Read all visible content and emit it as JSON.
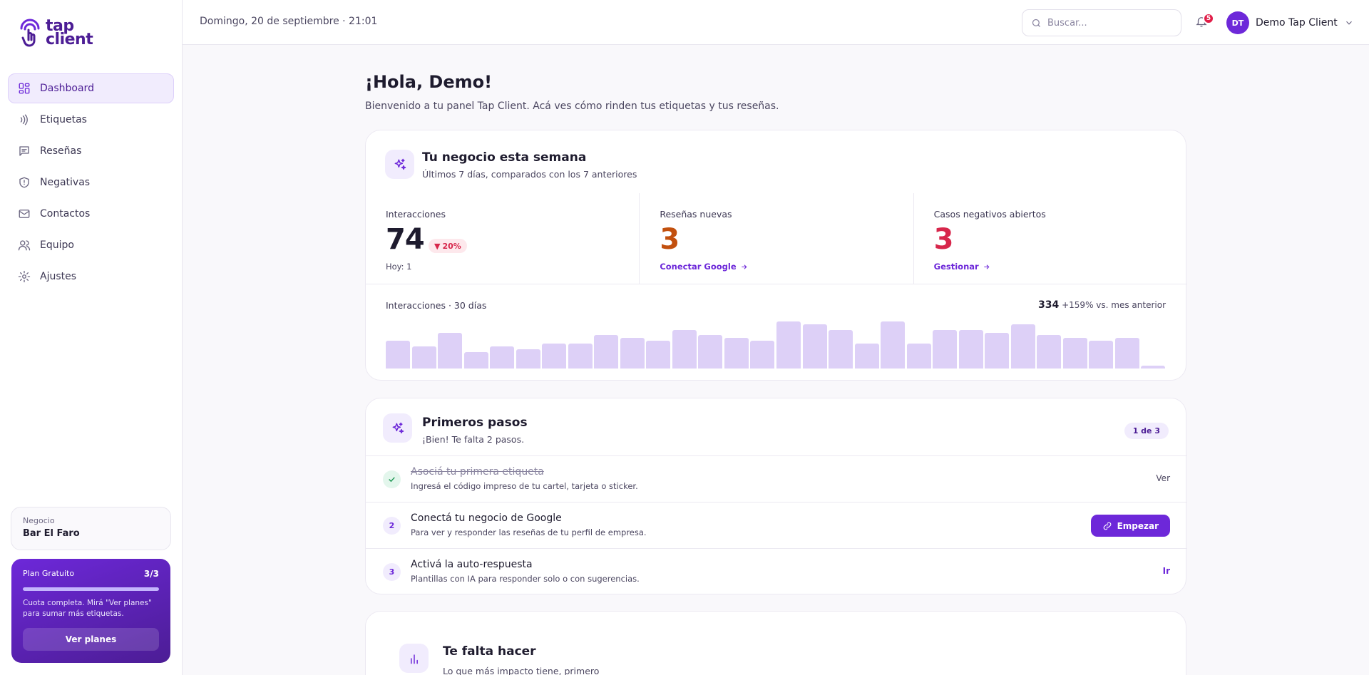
{
  "brand": {
    "line1": "tap",
    "line2": "client"
  },
  "sidebar": {
    "items": [
      {
        "label": "Dashboard",
        "icon": "dashboard-icon",
        "active": true
      },
      {
        "label": "Etiquetas",
        "icon": "nfc-icon"
      },
      {
        "label": "Reseñas",
        "icon": "reviews-icon"
      },
      {
        "label": "Negativas",
        "icon": "shield-icon"
      },
      {
        "label": "Contactos",
        "icon": "mail-icon"
      },
      {
        "label": "Equipo",
        "icon": "team-icon"
      },
      {
        "label": "Ajustes",
        "icon": "gear-icon"
      }
    ],
    "business": {
      "label": "Negocio",
      "name": "Bar El Faro"
    },
    "plan": {
      "name": "Plan Gratuito",
      "count": "3/3",
      "usage_fraction": 1.0,
      "text": "Cuota completa. Mirá \"Ver planes\" para sumar más etiquetas.",
      "button": "Ver planes"
    }
  },
  "topbar": {
    "date": "Domingo, 20 de septiembre · 21:01",
    "search_placeholder": "Buscar...",
    "notifications": "5",
    "user_initials": "DT",
    "user_name": "Demo Tap Client"
  },
  "main": {
    "greeting": "¡Hola, Demo!",
    "welcome": "Bienvenido a tu panel Tap Client. Acá ves cómo rinden tus etiquetas y tus reseñas.",
    "week": {
      "title": "Tu negocio esta semana",
      "subtitle": "Últimos 7 días, comparados con los 7 anteriores",
      "interactions": {
        "label": "Interacciones",
        "value": "74",
        "delta": "20%",
        "foot": "Hoy: 1"
      },
      "reviews": {
        "label": "Reseñas nuevas",
        "value": "3",
        "link": "Conectar Google"
      },
      "negatives": {
        "label": "Casos negativos abiertos",
        "value": "3",
        "link": "Gestionar"
      },
      "chart_label": "Interacciones · 30 días",
      "chart_total": "334",
      "chart_compare": "+159% vs. mes anterior"
    },
    "first_steps": {
      "title": "Primeros pasos",
      "subtitle": "¡Bien! Te falta 2 pasos.",
      "badge": "1 de 3",
      "steps": [
        {
          "num": "1",
          "done": true,
          "title": "Asociá tu primera etiqueta",
          "desc": "Ingresá el código impreso de tu cartel, tarjeta o sticker.",
          "action": "Ver"
        },
        {
          "num": "2",
          "done": false,
          "title": "Conectá tu negocio de Google",
          "desc": "Para ver y responder las reseñas de tu perfil de empresa.",
          "action": "Empezar"
        },
        {
          "num": "3",
          "done": false,
          "title": "Activá la auto-respuesta",
          "desc": "Plantillas con IA para responder solo o con sugerencias.",
          "action": "Ir"
        }
      ]
    },
    "todo": {
      "title": "Te falta hacer",
      "subtitle": "Lo que más impacto tiene, primero"
    }
  },
  "chart_data": {
    "type": "bar",
    "title": "Interacciones · 30 días",
    "x": [
      1,
      2,
      3,
      4,
      5,
      6,
      7,
      8,
      9,
      10,
      11,
      12,
      13,
      14,
      15,
      16,
      17,
      18,
      19,
      20,
      21,
      22,
      23,
      24,
      25,
      26,
      27,
      28,
      29,
      30
    ],
    "values": [
      10,
      8,
      13,
      6,
      8,
      7,
      9,
      9,
      12,
      11,
      10,
      14,
      12,
      11,
      10,
      17,
      16,
      14,
      9,
      17,
      9,
      14,
      14,
      13,
      16,
      12,
      11,
      10,
      11,
      1
    ],
    "colors": {
      "bar": "#ddd0f7",
      "accent": "#6d28d9"
    }
  }
}
